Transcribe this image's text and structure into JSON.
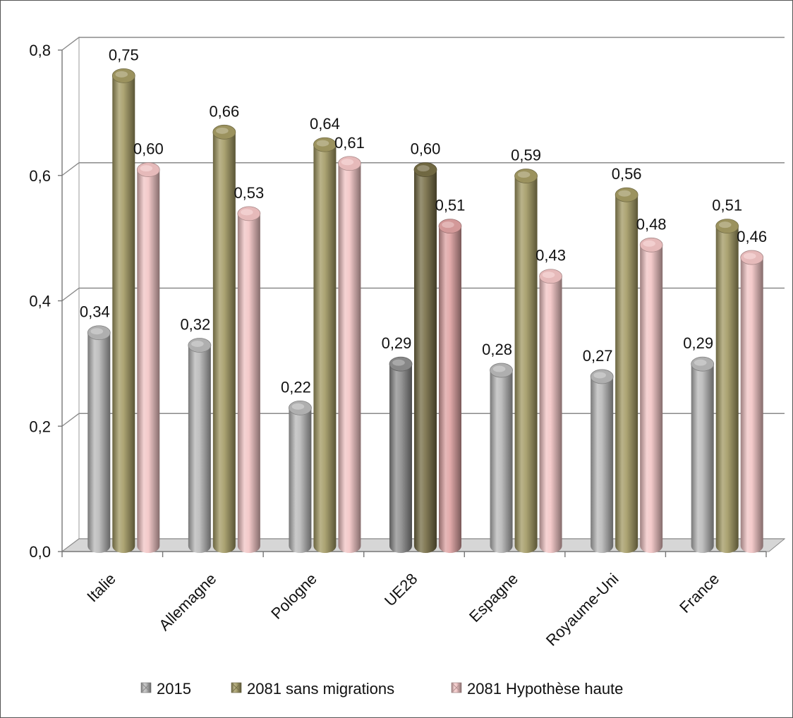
{
  "chart_data": {
    "type": "bar",
    "style": "3d-cylinder",
    "categories": [
      "Italie",
      "Allemagne",
      "Pologne",
      "UE28",
      "Espagne",
      "Royaume-Uni",
      "France"
    ],
    "highlighted_category": "UE28",
    "series": [
      {
        "name": "2015",
        "values": [
          0.34,
          0.32,
          0.22,
          0.29,
          0.28,
          0.27,
          0.29
        ],
        "labels": [
          "0,34",
          "0,32",
          "0,22",
          "0,29",
          "0,28",
          "0,27",
          "0,29"
        ],
        "color": "#b8b8b8",
        "highlight_color": "#8e8e8e"
      },
      {
        "name": "2081 sans migrations",
        "values": [
          0.75,
          0.66,
          0.64,
          0.6,
          0.59,
          0.56,
          0.51
        ],
        "labels": [
          "0,75",
          "0,66",
          "0,64",
          "0,60",
          "0,59",
          "0,56",
          "0,51"
        ],
        "color": "#a39a63",
        "highlight_color": "#766d45"
      },
      {
        "name": "2081 Hypothèse haute",
        "values": [
          0.6,
          0.53,
          0.61,
          0.51,
          0.43,
          0.48,
          0.46
        ],
        "labels": [
          "0,60",
          "0,53",
          "0,61",
          "0,51",
          "0,43",
          "0,48",
          "0,46"
        ],
        "color": "#f2c4c4",
        "highlight_color": "#dea1a1"
      }
    ],
    "yticks": [
      0,
      0.2,
      0.4,
      0.6,
      0.8
    ],
    "ytick_labels": [
      "0,0",
      "0,2",
      "0,4",
      "0,6",
      "0,8"
    ],
    "ylim": [
      0,
      0.8
    ],
    "grid": true,
    "legend_position": "bottom"
  }
}
